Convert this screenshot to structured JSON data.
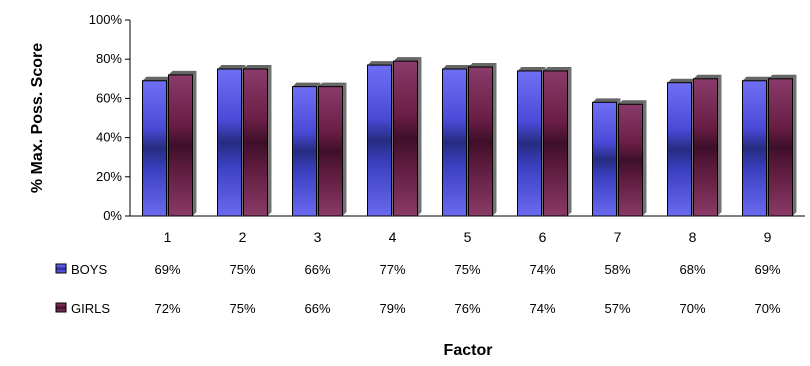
{
  "chart_data": {
    "type": "bar",
    "ylabel": "% Max. Poss. Score",
    "xlabel": "Factor",
    "ylim": [
      0,
      100
    ],
    "yticks": [
      "0%",
      "20%",
      "40%",
      "60%",
      "80%",
      "100%"
    ],
    "grid": false,
    "legend": "data-table-left",
    "categories": [
      "1",
      "2",
      "3",
      "4",
      "5",
      "6",
      "7",
      "8",
      "9"
    ],
    "series": [
      {
        "name": "BOYS",
        "color": "#5a5ae8",
        "values": [
          69,
          75,
          66,
          77,
          75,
          74,
          58,
          68,
          69
        ],
        "labels": [
          "69%",
          "75%",
          "66%",
          "77%",
          "75%",
          "74%",
          "58%",
          "68%",
          "69%"
        ]
      },
      {
        "name": "GIRLS",
        "color": "#7a2a55",
        "values": [
          72,
          75,
          66,
          79,
          76,
          74,
          57,
          70,
          70
        ],
        "labels": [
          "72%",
          "75%",
          "66%",
          "79%",
          "76%",
          "74%",
          "57%",
          "70%",
          "70%"
        ]
      }
    ]
  }
}
